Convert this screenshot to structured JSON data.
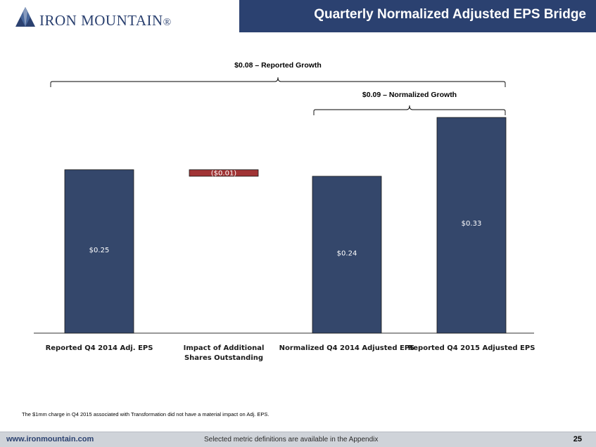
{
  "header": {
    "logo_main": "IRON MOUNTAIN",
    "logo_mark": "®",
    "title": "Quarterly Normalized Adjusted EPS Bridge"
  },
  "chart_data": {
    "type": "bar",
    "subtype": "waterfall",
    "title": "Quarterly Normalized Adjusted EPS Bridge",
    "categories": [
      "Reported Q4 2014 Adj. EPS",
      "Impact of Additional Shares Outstanding",
      "Normalized Q4 2014 Adjusted EPS",
      "Reported Q4 2015 Adjusted EPS"
    ],
    "category_lines": [
      [
        "Reported Q4 2014 Adj. EPS"
      ],
      [
        "Impact of Additional",
        "Shares Outstanding"
      ],
      [
        "Normalized Q4 2014 Adjusted EPS"
      ],
      [
        "Reported Q4 2015 Adjusted EPS"
      ]
    ],
    "values": [
      0.25,
      -0.01,
      0.24,
      0.33
    ],
    "bases": [
      0,
      0.24,
      0,
      0
    ],
    "tops": [
      0.25,
      0.25,
      0.24,
      0.33
    ],
    "labels": [
      "$0.25",
      "($0.01)",
      "$0.24",
      "$0.33"
    ],
    "colors": [
      "#34476b",
      "#a13435",
      "#34476b",
      "#34476b"
    ],
    "ylim": [
      0,
      0.34
    ],
    "grid": false,
    "annotations": [
      {
        "text": "$0.08 – Reported Growth",
        "from": 0,
        "to": 3
      },
      {
        "text": "$0.09 – Normalized Growth",
        "from": 2,
        "to": 3
      }
    ]
  },
  "footnote": "The $1mm charge in Q4 2015 associated with Transformation did not have a material impact on Adj. EPS.",
  "footer": {
    "url": "www.ironmountain.com",
    "note": "Selected metric definitions are available in the Appendix",
    "page": "25"
  }
}
